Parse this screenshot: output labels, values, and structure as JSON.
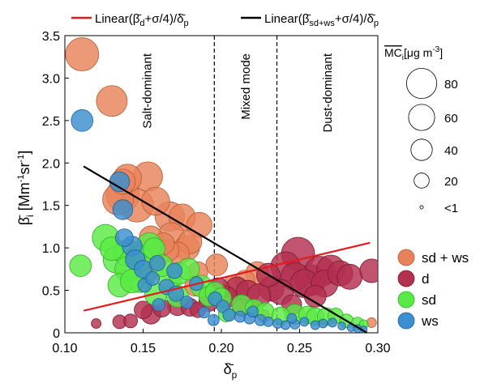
{
  "chart_data": {
    "type": "scatter",
    "xlabel": "δ̄p",
    "ylabel": "β̄i [Mm⁻¹sr⁻¹]",
    "xlim": [
      0.1,
      0.3
    ],
    "ylim": [
      0,
      3.5
    ],
    "xticks": [
      "0.10",
      "0.15",
      "0.20",
      "0.25",
      "0.30"
    ],
    "yticks": [
      "0",
      "0.5",
      "1.0",
      "1.5",
      "2.0",
      "2.5",
      "3.0",
      "3.5"
    ],
    "grid": false,
    "vlines": [
      0.1955,
      0.2355
    ],
    "regions": [
      {
        "label": "Salt-dominant",
        "x": 0.1525
      },
      {
        "label": "Mixed mode",
        "x": 0.2155
      },
      {
        "label": "Dust-dominant",
        "x": 0.268
      }
    ],
    "fit_lines": [
      {
        "name": "Linear(β̄d+σ/4)/δ̄p",
        "color": "#e41a1c",
        "x": [
          0.112,
          0.295
        ],
        "y": [
          0.26,
          1.06
        ]
      },
      {
        "name": "Linear(β̄sd+ws+σ/4)/δ̄p",
        "color": "#000000",
        "x": [
          0.112,
          0.293
        ],
        "y": [
          1.96,
          0.0
        ]
      }
    ],
    "size_legend": {
      "title": "MCi [μg m⁻³]",
      "entries": [
        {
          "label": "80",
          "value": 80
        },
        {
          "label": "60",
          "value": 60
        },
        {
          "label": "40",
          "value": 40
        },
        {
          "label": "20",
          "value": 20
        },
        {
          "label": "<1",
          "value": 1
        }
      ]
    },
    "series": [
      {
        "name": "sd + ws",
        "color": "#e8825a",
        "stroke": "#b85a32",
        "points": [
          [
            0.111,
            3.28,
            70
          ],
          [
            0.13,
            2.73,
            60
          ],
          [
            0.137,
            1.78,
            40
          ],
          [
            0.14,
            1.82,
            50
          ],
          [
            0.137,
            1.62,
            70
          ],
          [
            0.134,
            1.57,
            60
          ],
          [
            0.153,
            1.84,
            55
          ],
          [
            0.158,
            1.55,
            50
          ],
          [
            0.146,
            1.5,
            70
          ],
          [
            0.167,
            1.37,
            55
          ],
          [
            0.175,
            1.36,
            45
          ],
          [
            0.168,
            1.14,
            45
          ],
          [
            0.18,
            1.07,
            35
          ],
          [
            0.186,
            1.27,
            40
          ],
          [
            0.166,
            0.97,
            30
          ],
          [
            0.172,
            0.93,
            35
          ],
          [
            0.144,
            0.88,
            30
          ],
          [
            0.158,
            0.86,
            35
          ],
          [
            0.197,
            0.8,
            30
          ],
          [
            0.178,
            1.0,
            40
          ],
          [
            0.155,
            1.12,
            35
          ],
          [
            0.163,
            1.05,
            30
          ],
          [
            0.152,
            0.7,
            30
          ],
          [
            0.185,
            0.72,
            25
          ],
          [
            0.215,
            0.62,
            25
          ],
          [
            0.223,
            0.7,
            35
          ],
          [
            0.183,
            0.55,
            25
          ],
          [
            0.208,
            0.55,
            30
          ],
          [
            0.296,
            0.12,
            6
          ],
          [
            0.227,
            0.2,
            10
          ]
        ]
      },
      {
        "name": "d",
        "color": "#b3304f",
        "stroke": "#7a1a30",
        "points": [
          [
            0.12,
            0.11,
            6
          ],
          [
            0.135,
            0.13,
            12
          ],
          [
            0.142,
            0.14,
            12
          ],
          [
            0.15,
            0.27,
            20
          ],
          [
            0.155,
            0.22,
            25
          ],
          [
            0.162,
            0.29,
            20
          ],
          [
            0.172,
            0.32,
            25
          ],
          [
            0.18,
            0.3,
            20
          ],
          [
            0.185,
            0.27,
            15
          ],
          [
            0.192,
            0.37,
            25
          ],
          [
            0.203,
            0.42,
            30
          ],
          [
            0.21,
            0.52,
            35
          ],
          [
            0.217,
            0.48,
            35
          ],
          [
            0.224,
            0.44,
            35
          ],
          [
            0.232,
            0.52,
            40
          ],
          [
            0.238,
            0.48,
            40
          ],
          [
            0.247,
            0.66,
            50
          ],
          [
            0.253,
            0.58,
            50
          ],
          [
            0.257,
            0.62,
            60
          ],
          [
            0.263,
            0.72,
            60
          ],
          [
            0.27,
            0.75,
            50
          ],
          [
            0.276,
            0.7,
            40
          ],
          [
            0.282,
            0.66,
            40
          ],
          [
            0.296,
            0.73,
            35
          ],
          [
            0.249,
            0.93,
            70
          ],
          [
            0.241,
            0.78,
            55
          ],
          [
            0.266,
            0.58,
            45
          ],
          [
            0.23,
            0.68,
            35
          ],
          [
            0.26,
            0.43,
            30
          ],
          [
            0.245,
            0.33,
            25
          ],
          [
            0.198,
            0.52,
            30
          ],
          [
            0.213,
            0.3,
            20
          ]
        ]
      },
      {
        "name": "sd",
        "color": "#5aea46",
        "stroke": "#2fb020",
        "points": [
          [
            0.11,
            0.79,
            30
          ],
          [
            0.126,
            1.12,
            45
          ],
          [
            0.13,
            0.99,
            35
          ],
          [
            0.133,
            0.86,
            45
          ],
          [
            0.14,
            0.94,
            45
          ],
          [
            0.148,
            0.64,
            50
          ],
          [
            0.154,
            1.03,
            40
          ],
          [
            0.157,
            0.99,
            30
          ],
          [
            0.162,
            0.79,
            30
          ],
          [
            0.167,
            0.63,
            35
          ],
          [
            0.173,
            0.7,
            30
          ],
          [
            0.179,
            0.75,
            30
          ],
          [
            0.187,
            0.55,
            30
          ],
          [
            0.192,
            0.43,
            25
          ],
          [
            0.135,
            0.56,
            35
          ],
          [
            0.143,
            0.61,
            35
          ],
          [
            0.158,
            0.45,
            30
          ],
          [
            0.172,
            0.43,
            30
          ],
          [
            0.196,
            0.48,
            25
          ],
          [
            0.2,
            0.41,
            25
          ],
          [
            0.213,
            0.33,
            25
          ],
          [
            0.221,
            0.29,
            20
          ],
          [
            0.228,
            0.25,
            20
          ],
          [
            0.238,
            0.2,
            20
          ],
          [
            0.247,
            0.22,
            25
          ],
          [
            0.255,
            0.21,
            20
          ],
          [
            0.26,
            0.19,
            20
          ],
          [
            0.267,
            0.19,
            20
          ],
          [
            0.273,
            0.2,
            15
          ],
          [
            0.28,
            0.14,
            12
          ],
          [
            0.287,
            0.11,
            10
          ],
          [
            0.291,
            0.1,
            5
          ],
          [
            0.203,
            0.22,
            15
          ],
          [
            0.14,
            0.75,
            40
          ],
          [
            0.148,
            0.88,
            40
          ]
        ]
      },
      {
        "name": "ws",
        "color": "#3b8fd0",
        "stroke": "#1f5f98",
        "points": [
          [
            0.111,
            2.5,
            30
          ],
          [
            0.135,
            1.78,
            25
          ],
          [
            0.137,
            1.45,
            25
          ],
          [
            0.138,
            1.12,
            20
          ],
          [
            0.143,
            1.02,
            25
          ],
          [
            0.145,
            0.86,
            25
          ],
          [
            0.15,
            0.75,
            20
          ],
          [
            0.159,
            0.82,
            15
          ],
          [
            0.17,
            0.73,
            15
          ],
          [
            0.165,
            0.54,
            15
          ],
          [
            0.171,
            0.46,
            15
          ],
          [
            0.184,
            0.58,
            12
          ],
          [
            0.196,
            0.4,
            12
          ],
          [
            0.201,
            0.31,
            10
          ],
          [
            0.205,
            0.21,
            10
          ],
          [
            0.212,
            0.19,
            8
          ],
          [
            0.218,
            0.17,
            8
          ],
          [
            0.225,
            0.15,
            8
          ],
          [
            0.23,
            0.13,
            6
          ],
          [
            0.236,
            0.11,
            6
          ],
          [
            0.241,
            0.09,
            5
          ],
          [
            0.247,
            0.1,
            6
          ],
          [
            0.253,
            0.13,
            5
          ],
          [
            0.26,
            0.09,
            5
          ],
          [
            0.265,
            0.11,
            5
          ],
          [
            0.271,
            0.12,
            5
          ],
          [
            0.277,
            0.08,
            4
          ],
          [
            0.283,
            0.06,
            4
          ],
          [
            0.287,
            0.05,
            4
          ],
          [
            0.291,
            0.04,
            3
          ],
          [
            0.195,
            0.15,
            8
          ],
          [
            0.16,
            0.33,
            10
          ],
          [
            0.178,
            0.36,
            10
          ],
          [
            0.151,
            0.56,
            12
          ],
          [
            0.156,
            0.64,
            12
          ],
          [
            0.189,
            0.24,
            8
          ],
          [
            0.22,
            0.25,
            8
          ],
          [
            0.245,
            0.17,
            6
          ]
        ]
      }
    ]
  }
}
